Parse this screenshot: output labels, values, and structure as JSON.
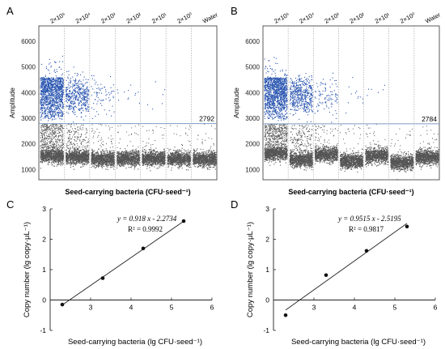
{
  "chart_data": [
    {
      "panel": "A",
      "type": "scatter",
      "ylabel": "Amplitude",
      "xlabel": "Seed-carrying bacteria (CFU·seed⁻¹)",
      "yticks": [
        "1000",
        "2000",
        "3000",
        "4000",
        "5000",
        "6000"
      ],
      "ylim": [
        600,
        6600
      ],
      "categories": [
        "2×10⁵",
        "2×10⁴",
        "2×10³",
        "2×10²",
        "2×10¹",
        "2×10⁰",
        "Water"
      ],
      "threshold": 2792,
      "threshold_label": "2792",
      "negative_band_mean": [
        1550,
        1500,
        1420,
        1440,
        1450,
        1430,
        1420
      ],
      "positive_droplet_density": [
        1.0,
        0.35,
        0.06,
        0.01,
        0.005,
        0.0,
        0.0
      ],
      "colors": {
        "positive": "#2a55b0",
        "negative": "#555555",
        "threshold": "#7a9cc0"
      }
    },
    {
      "panel": "B",
      "type": "scatter",
      "ylabel": "Amplitude",
      "xlabel": "Seed-carrying bacteria (CFU·seed⁻¹)",
      "yticks": [
        "1000",
        "2000",
        "3000",
        "4000",
        "5000",
        "6000"
      ],
      "ylim": [
        600,
        6600
      ],
      "categories": [
        "2×10⁵",
        "2×10⁴",
        "2×10³",
        "2×10²",
        "2×10¹",
        "2×10⁰",
        "Water"
      ],
      "threshold": 2784,
      "threshold_label": "2784",
      "negative_band_mean": [
        1650,
        1400,
        1600,
        1350,
        1550,
        1300,
        1500
      ],
      "positive_droplet_density": [
        1.0,
        0.4,
        0.08,
        0.01,
        0.005,
        0.0,
        0.0
      ],
      "colors": {
        "positive": "#2a55b0",
        "negative": "#555555",
        "threshold": "#7a9cc0"
      }
    },
    {
      "panel": "C",
      "type": "scatter",
      "xlabel": "Seed-carrying bacteria (lg CFU·seed⁻¹)",
      "ylabel": "Copy number (lg copy·μL⁻¹)",
      "xlim": [
        2,
        6
      ],
      "ylim": [
        -1,
        3
      ],
      "xticks": [
        3,
        4,
        5,
        6
      ],
      "yticks": [
        -1,
        0,
        1,
        2,
        3
      ],
      "points": [
        [
          2.3,
          -0.15
        ],
        [
          3.3,
          0.72
        ],
        [
          4.3,
          1.7
        ],
        [
          5.3,
          2.6
        ]
      ],
      "fit": {
        "slope": 0.918,
        "intercept": -2.2734,
        "x_from": 2.3,
        "x_to": 5.3
      },
      "equation": "y = 0.918 x - 2.2734",
      "r2": "R² = 0.9992"
    },
    {
      "panel": "D",
      "type": "scatter",
      "xlabel": "Seed-carrying bacteria (lg CFU·seed⁻¹)",
      "ylabel": "Copy number (lg copy·μL⁻¹)",
      "xlim": [
        2,
        6
      ],
      "ylim": [
        -1,
        3
      ],
      "xticks": [
        3,
        4,
        5,
        6
      ],
      "yticks": [
        -1,
        0,
        1,
        2,
        3
      ],
      "points": [
        [
          2.3,
          -0.5
        ],
        [
          3.3,
          0.82
        ],
        [
          4.3,
          1.62
        ],
        [
          5.3,
          2.42
        ]
      ],
      "fit": {
        "slope": 0.9515,
        "intercept": -2.5195,
        "x_from": 2.3,
        "x_to": 5.3
      },
      "equation": "y = 0.9515 x - 2.5195",
      "r2": "R² = 0.9817"
    }
  ]
}
